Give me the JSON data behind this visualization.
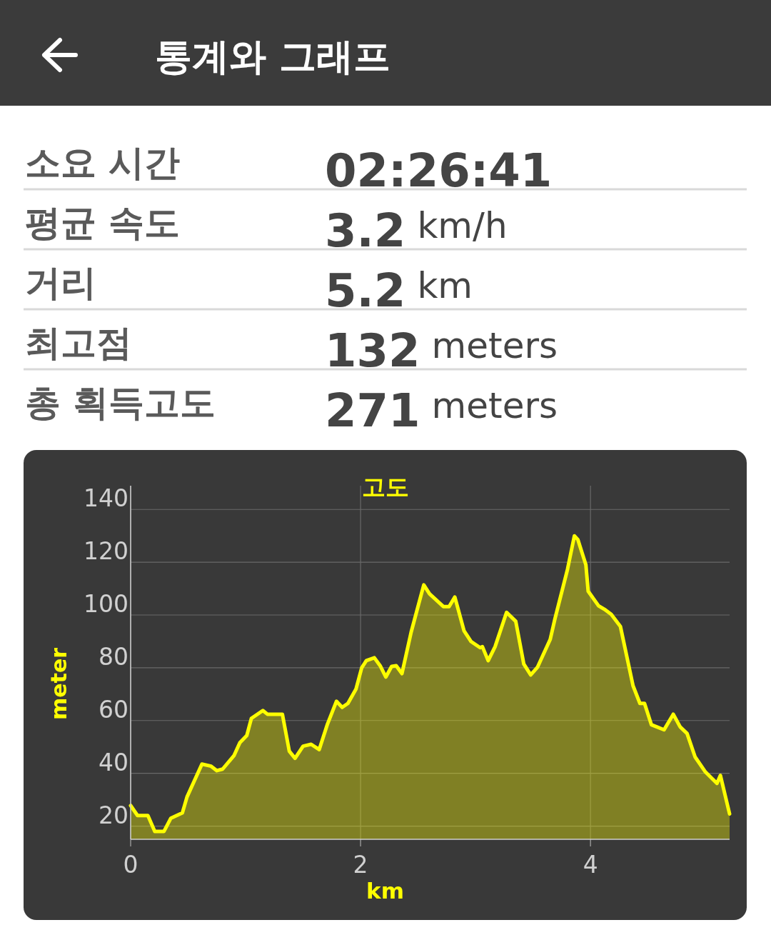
{
  "chart_data": [
    {
      "type": "other",
      "title": "통계와 그래프",
      "categories": [
        "소요 시간",
        "평균 속도",
        "거리",
        "최고점",
        "총 획득고도"
      ],
      "value_labels": [
        "02:26:41",
        "3.2 km/h",
        "5.2 km",
        "132 meters",
        "271 meters"
      ]
    },
    {
      "type": "area",
      "title": "고도",
      "xlabel": "km",
      "ylabel": "meter",
      "xlim": [
        0,
        5.21
      ],
      "ylim": [
        15,
        149
      ],
      "xticks": [
        0,
        2,
        4
      ],
      "yticks": [
        20,
        40,
        60,
        80,
        100,
        120,
        140
      ],
      "grid": true,
      "series": [
        {
          "color": "#ffff00",
          "x": [
            0,
            0.06,
            0.15,
            0.21,
            0.29,
            0.35,
            0.45,
            0.49,
            0.62,
            0.7,
            0.75,
            0.8,
            0.9,
            0.95,
            1.01,
            1.05,
            1.15,
            1.19,
            1.32,
            1.38,
            1.43,
            1.5,
            1.57,
            1.64,
            1.71,
            1.79,
            1.84,
            1.89,
            1.96,
            2.01,
            2.05,
            2.12,
            2.17,
            2.22,
            2.27,
            2.31,
            2.36,
            2.44,
            2.55,
            2.6,
            2.72,
            2.77,
            2.82,
            2.9,
            2.96,
            3.04,
            3.06,
            3.11,
            3.17,
            3.27,
            3.35,
            3.42,
            3.48,
            3.54,
            3.65,
            3.69,
            3.8,
            3.86,
            3.89,
            3.96,
            3.98,
            4.07,
            4.13,
            4.18,
            4.26,
            4.37,
            4.43,
            4.47,
            4.53,
            4.64,
            4.72,
            4.78,
            4.84,
            4.91,
            5.0,
            5.1,
            5.13,
            5.21
          ],
          "values": [
            27.8,
            24,
            24,
            18,
            18,
            23,
            25,
            31,
            43.5,
            42.7,
            41,
            41.6,
            46.8,
            51.6,
            54.3,
            60.8,
            63.8,
            62.4,
            62.4,
            48.4,
            45.7,
            50.3,
            51,
            49,
            58.4,
            67.3,
            65,
            66.5,
            71.9,
            80,
            82.7,
            83.8,
            80.8,
            76.5,
            80.5,
            80.8,
            77.8,
            93.5,
            111.4,
            108,
            103.2,
            103.2,
            106.8,
            94,
            90,
            87.6,
            88,
            82.7,
            88,
            101,
            97.6,
            81.4,
            77.3,
            80.3,
            90.8,
            98.4,
            117.3,
            130,
            128.6,
            119,
            109,
            103.5,
            101.9,
            100.3,
            95.7,
            73.2,
            66.5,
            66.5,
            58.4,
            56.5,
            62.4,
            57.6,
            55.1,
            46.2,
            40.5,
            36.2,
            39.2,
            24.6
          ]
        }
      ]
    }
  ]
}
